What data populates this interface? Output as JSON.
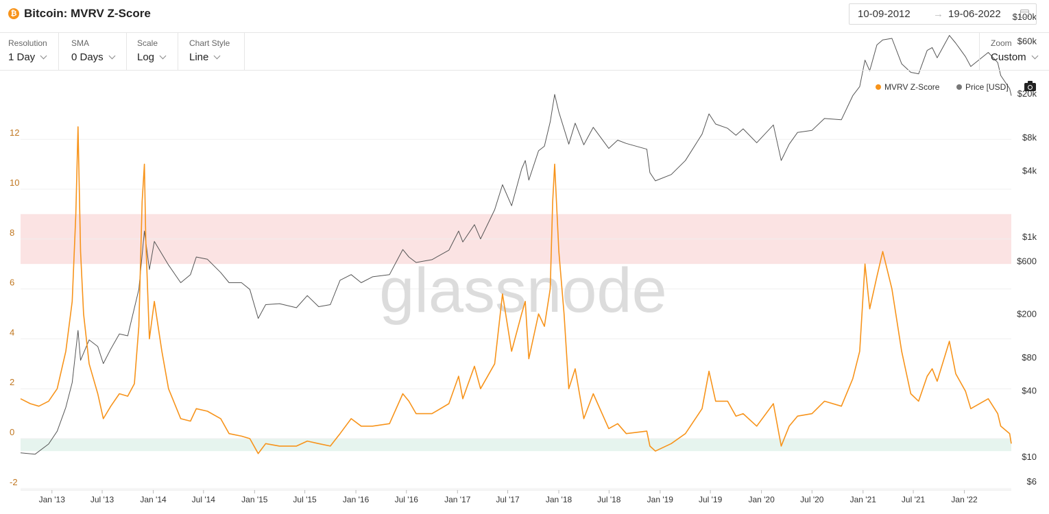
{
  "header": {
    "title": "Bitcoin: MVRV Z-Score",
    "coin_icon": "bitcoin-icon",
    "date_start": "10-09-2012",
    "date_arrow": "→",
    "date_end": "19-06-2022"
  },
  "controls": [
    {
      "label": "Resolution",
      "value": "1 Day"
    },
    {
      "label": "SMA",
      "value": "0 Days"
    },
    {
      "label": "Scale",
      "value": "Log"
    },
    {
      "label": "Chart Style",
      "value": "Line"
    }
  ],
  "zoom": {
    "label": "Zoom",
    "value": "Custom"
  },
  "legend": [
    {
      "name": "MVRV Z-Score",
      "color": "#f7931a"
    },
    {
      "name": "Price [USD]",
      "color": "#777777"
    }
  ],
  "watermark": "glassnode",
  "colors": {
    "zscore": "#f7931a",
    "price": "#555555",
    "red_band": "#fbe3e3",
    "green_band": "#e6f4ee",
    "axis_left_text": "#c0761f"
  },
  "chart_data": {
    "type": "line",
    "x_range": [
      "2012-09-10",
      "2022-06-19"
    ],
    "x_ticks": [
      "Jan '13",
      "Jul '13",
      "Jan '14",
      "Jul '14",
      "Jan '15",
      "Jul '15",
      "Jan '16",
      "Jul '16",
      "Jan '17",
      "Jul '17",
      "Jan '18",
      "Jul '18",
      "Jan '19",
      "Jul '19",
      "Jan '20",
      "Jul '20",
      "Jan '21",
      "Jul '21",
      "Jan '22"
    ],
    "x_tick_dates": [
      "2013-01-01",
      "2013-07-01",
      "2014-01-01",
      "2014-07-01",
      "2015-01-01",
      "2015-07-01",
      "2016-01-01",
      "2016-07-01",
      "2017-01-01",
      "2017-07-01",
      "2018-01-01",
      "2018-07-01",
      "2019-01-01",
      "2019-07-01",
      "2020-01-01",
      "2020-07-01",
      "2021-01-01",
      "2021-07-01",
      "2022-01-01"
    ],
    "y_left": {
      "ticks": [
        -2,
        0,
        2,
        4,
        6,
        8,
        10,
        12
      ],
      "range": [
        -2,
        13
      ]
    },
    "y_right": {
      "scale": "log",
      "ticks": [
        6,
        10,
        40,
        80,
        200,
        600,
        1000,
        4000,
        8000,
        20000,
        60000,
        100000
      ],
      "tick_labels": [
        "$6",
        "$10",
        "$40",
        "$80",
        "$200",
        "$600",
        "$1k",
        "$4k",
        "$8k",
        "$20k",
        "$60k",
        "$100k"
      ]
    },
    "bands": [
      {
        "name": "red",
        "y_from": 7,
        "y_to": 9
      },
      {
        "name": "green",
        "y_from": -0.5,
        "y_to": 0
      }
    ],
    "series": [
      {
        "name": "MVRV Z-Score",
        "axis": "left",
        "points": [
          [
            "2012-09-10",
            1.6
          ],
          [
            "2012-10-15",
            1.4
          ],
          [
            "2012-11-15",
            1.3
          ],
          [
            "2012-12-20",
            1.5
          ],
          [
            "2013-01-20",
            2.0
          ],
          [
            "2013-02-20",
            3.5
          ],
          [
            "2013-03-15",
            5.5
          ],
          [
            "2013-03-28",
            9.0
          ],
          [
            "2013-04-05",
            12.5
          ],
          [
            "2013-04-14",
            7.5
          ],
          [
            "2013-04-25",
            5.0
          ],
          [
            "2013-05-15",
            3.0
          ],
          [
            "2013-06-15",
            1.8
          ],
          [
            "2013-07-05",
            0.8
          ],
          [
            "2013-08-01",
            1.3
          ],
          [
            "2013-09-01",
            1.8
          ],
          [
            "2013-10-01",
            1.7
          ],
          [
            "2013-10-25",
            2.2
          ],
          [
            "2013-11-10",
            4.5
          ],
          [
            "2013-11-22",
            9.5
          ],
          [
            "2013-11-30",
            11.0
          ],
          [
            "2013-12-05",
            8.0
          ],
          [
            "2013-12-18",
            4.0
          ],
          [
            "2014-01-05",
            5.5
          ],
          [
            "2014-02-01",
            3.5
          ],
          [
            "2014-02-25",
            2.0
          ],
          [
            "2014-04-10",
            0.8
          ],
          [
            "2014-05-15",
            0.7
          ],
          [
            "2014-06-05",
            1.2
          ],
          [
            "2014-07-15",
            1.1
          ],
          [
            "2014-09-01",
            0.8
          ],
          [
            "2014-10-01",
            0.2
          ],
          [
            "2014-11-15",
            0.1
          ],
          [
            "2014-12-15",
            0.0
          ],
          [
            "2015-01-14",
            -0.6
          ],
          [
            "2015-02-10",
            -0.2
          ],
          [
            "2015-04-01",
            -0.3
          ],
          [
            "2015-06-01",
            -0.3
          ],
          [
            "2015-07-10",
            -0.1
          ],
          [
            "2015-08-20",
            -0.2
          ],
          [
            "2015-10-01",
            -0.3
          ],
          [
            "2015-11-05",
            0.2
          ],
          [
            "2015-12-15",
            0.8
          ],
          [
            "2016-01-20",
            0.5
          ],
          [
            "2016-03-01",
            0.5
          ],
          [
            "2016-05-01",
            0.6
          ],
          [
            "2016-06-18",
            1.8
          ],
          [
            "2016-07-10",
            1.5
          ],
          [
            "2016-08-05",
            1.0
          ],
          [
            "2016-10-01",
            1.0
          ],
          [
            "2016-12-01",
            1.4
          ],
          [
            "2017-01-05",
            2.5
          ],
          [
            "2017-01-20",
            1.6
          ],
          [
            "2017-03-03",
            2.9
          ],
          [
            "2017-03-25",
            2.0
          ],
          [
            "2017-05-15",
            3.0
          ],
          [
            "2017-06-12",
            5.8
          ],
          [
            "2017-07-15",
            3.5
          ],
          [
            "2017-08-20",
            5.0
          ],
          [
            "2017-09-02",
            5.5
          ],
          [
            "2017-09-15",
            3.2
          ],
          [
            "2017-10-20",
            5.0
          ],
          [
            "2017-11-10",
            4.5
          ],
          [
            "2017-12-01",
            6.0
          ],
          [
            "2017-12-10",
            9.5
          ],
          [
            "2017-12-17",
            11.0
          ],
          [
            "2018-01-01",
            7.5
          ],
          [
            "2018-01-20",
            5.0
          ],
          [
            "2018-02-06",
            2.0
          ],
          [
            "2018-03-01",
            2.8
          ],
          [
            "2018-04-01",
            0.8
          ],
          [
            "2018-05-05",
            1.8
          ],
          [
            "2018-06-30",
            0.4
          ],
          [
            "2018-08-01",
            0.6
          ],
          [
            "2018-09-01",
            0.2
          ],
          [
            "2018-11-14",
            0.3
          ],
          [
            "2018-11-25",
            -0.3
          ],
          [
            "2018-12-15",
            -0.5
          ],
          [
            "2019-02-10",
            -0.2
          ],
          [
            "2019-04-02",
            0.2
          ],
          [
            "2019-06-01",
            1.2
          ],
          [
            "2019-06-26",
            2.7
          ],
          [
            "2019-07-20",
            1.5
          ],
          [
            "2019-09-01",
            1.5
          ],
          [
            "2019-10-01",
            0.9
          ],
          [
            "2019-10-27",
            1.0
          ],
          [
            "2019-12-15",
            0.5
          ],
          [
            "2020-02-13",
            1.4
          ],
          [
            "2020-03-12",
            -0.3
          ],
          [
            "2020-04-10",
            0.5
          ],
          [
            "2020-05-10",
            0.9
          ],
          [
            "2020-07-01",
            1.0
          ],
          [
            "2020-08-15",
            1.5
          ],
          [
            "2020-10-15",
            1.3
          ],
          [
            "2020-11-25",
            2.4
          ],
          [
            "2020-12-20",
            3.5
          ],
          [
            "2021-01-08",
            7.0
          ],
          [
            "2021-01-25",
            5.2
          ],
          [
            "2021-02-20",
            6.5
          ],
          [
            "2021-03-13",
            7.5
          ],
          [
            "2021-04-15",
            6.0
          ],
          [
            "2021-05-20",
            3.5
          ],
          [
            "2021-06-22",
            1.8
          ],
          [
            "2021-07-20",
            1.5
          ],
          [
            "2021-08-20",
            2.5
          ],
          [
            "2021-09-07",
            2.8
          ],
          [
            "2021-09-25",
            2.3
          ],
          [
            "2021-11-08",
            3.9
          ],
          [
            "2021-12-01",
            2.6
          ],
          [
            "2022-01-05",
            1.9
          ],
          [
            "2022-01-24",
            1.2
          ],
          [
            "2022-03-28",
            1.6
          ],
          [
            "2022-05-01",
            1.0
          ],
          [
            "2022-05-12",
            0.5
          ],
          [
            "2022-06-13",
            0.2
          ],
          [
            "2022-06-19",
            -0.2
          ]
        ]
      },
      {
        "name": "Price [USD]",
        "axis": "right",
        "points": [
          [
            "2012-09-10",
            10.8
          ],
          [
            "2012-11-01",
            10.5
          ],
          [
            "2012-12-20",
            13.0
          ],
          [
            "2013-01-20",
            17
          ],
          [
            "2013-02-20",
            28
          ],
          [
            "2013-03-15",
            47
          ],
          [
            "2013-04-05",
            140
          ],
          [
            "2013-04-14",
            75
          ],
          [
            "2013-05-15",
            115
          ],
          [
            "2013-06-15",
            100
          ],
          [
            "2013-07-05",
            70
          ],
          [
            "2013-08-01",
            95
          ],
          [
            "2013-09-01",
            130
          ],
          [
            "2013-10-01",
            125
          ],
          [
            "2013-11-10",
            330
          ],
          [
            "2013-11-30",
            1120
          ],
          [
            "2013-12-18",
            500
          ],
          [
            "2014-01-05",
            900
          ],
          [
            "2014-02-25",
            550
          ],
          [
            "2014-04-10",
            380
          ],
          [
            "2014-05-15",
            450
          ],
          [
            "2014-06-05",
            650
          ],
          [
            "2014-07-15",
            620
          ],
          [
            "2014-09-01",
            470
          ],
          [
            "2014-10-01",
            380
          ],
          [
            "2014-11-15",
            380
          ],
          [
            "2014-12-15",
            330
          ],
          [
            "2015-01-14",
            180
          ],
          [
            "2015-02-10",
            240
          ],
          [
            "2015-04-01",
            245
          ],
          [
            "2015-06-01",
            225
          ],
          [
            "2015-07-10",
            290
          ],
          [
            "2015-08-20",
            230
          ],
          [
            "2015-10-01",
            240
          ],
          [
            "2015-11-05",
            400
          ],
          [
            "2015-12-15",
            450
          ],
          [
            "2016-01-20",
            380
          ],
          [
            "2016-03-01",
            430
          ],
          [
            "2016-05-01",
            450
          ],
          [
            "2016-06-18",
            760
          ],
          [
            "2016-07-10",
            650
          ],
          [
            "2016-08-05",
            580
          ],
          [
            "2016-10-01",
            615
          ],
          [
            "2016-12-01",
            750
          ],
          [
            "2017-01-05",
            1120
          ],
          [
            "2017-01-20",
            890
          ],
          [
            "2017-03-03",
            1280
          ],
          [
            "2017-03-25",
            950
          ],
          [
            "2017-05-15",
            1750
          ],
          [
            "2017-06-12",
            2950
          ],
          [
            "2017-07-15",
            1900
          ],
          [
            "2017-08-20",
            4100
          ],
          [
            "2017-09-02",
            4900
          ],
          [
            "2017-09-15",
            3250
          ],
          [
            "2017-10-20",
            6000
          ],
          [
            "2017-11-10",
            6600
          ],
          [
            "2017-12-01",
            11000
          ],
          [
            "2017-12-17",
            19500
          ],
          [
            "2018-01-01",
            13500
          ],
          [
            "2018-02-06",
            6900
          ],
          [
            "2018-03-01",
            10700
          ],
          [
            "2018-04-01",
            6800
          ],
          [
            "2018-05-05",
            9800
          ],
          [
            "2018-06-30",
            6300
          ],
          [
            "2018-08-01",
            7500
          ],
          [
            "2018-09-01",
            7000
          ],
          [
            "2018-11-14",
            6200
          ],
          [
            "2018-11-25",
            3800
          ],
          [
            "2018-12-15",
            3200
          ],
          [
            "2019-02-10",
            3650
          ],
          [
            "2019-04-02",
            4900
          ],
          [
            "2019-06-01",
            8500
          ],
          [
            "2019-06-26",
            13000
          ],
          [
            "2019-07-20",
            10500
          ],
          [
            "2019-09-01",
            9600
          ],
          [
            "2019-10-01",
            8300
          ],
          [
            "2019-10-27",
            9500
          ],
          [
            "2019-12-15",
            7100
          ],
          [
            "2020-02-13",
            10300
          ],
          [
            "2020-03-12",
            4900
          ],
          [
            "2020-04-10",
            6900
          ],
          [
            "2020-05-10",
            8800
          ],
          [
            "2020-07-01",
            9200
          ],
          [
            "2020-08-15",
            11800
          ],
          [
            "2020-10-15",
            11500
          ],
          [
            "2020-11-25",
            19000
          ],
          [
            "2020-12-20",
            23000
          ],
          [
            "2021-01-08",
            40000
          ],
          [
            "2021-01-25",
            32000
          ],
          [
            "2021-02-20",
            55000
          ],
          [
            "2021-03-13",
            61000
          ],
          [
            "2021-04-15",
            63000
          ],
          [
            "2021-05-20",
            37000
          ],
          [
            "2021-06-22",
            31000
          ],
          [
            "2021-07-20",
            30000
          ],
          [
            "2021-08-20",
            49000
          ],
          [
            "2021-09-07",
            52000
          ],
          [
            "2021-09-25",
            42000
          ],
          [
            "2021-11-08",
            67000
          ],
          [
            "2021-12-01",
            57000
          ],
          [
            "2022-01-05",
            43000
          ],
          [
            "2022-01-24",
            35000
          ],
          [
            "2022-03-28",
            47000
          ],
          [
            "2022-05-01",
            38000
          ],
          [
            "2022-05-12",
            29000
          ],
          [
            "2022-06-13",
            22000
          ],
          [
            "2022-06-19",
            19000
          ]
        ]
      }
    ]
  }
}
